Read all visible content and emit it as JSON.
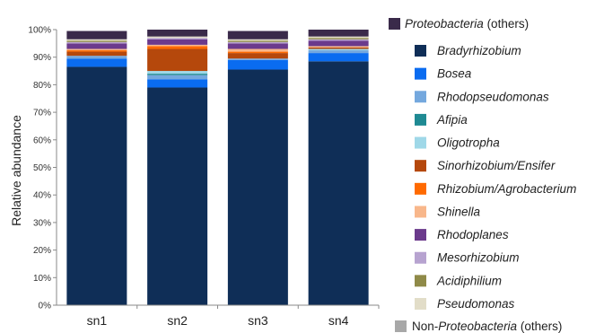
{
  "chart_data": {
    "type": "bar",
    "stacked": true,
    "ylabel": "Relative abundance",
    "ylim": [
      0,
      100
    ],
    "yticks": [
      0,
      10,
      20,
      30,
      40,
      50,
      60,
      70,
      80,
      90,
      100
    ],
    "ytick_suffix": "%",
    "categories": [
      "sn1",
      "sn2",
      "sn3",
      "sn4"
    ],
    "grid": false,
    "legend_position": "right",
    "series": [
      {
        "name": "Bradyrhizobium",
        "color": "#0f2e57",
        "values": [
          86.5,
          79.0,
          85.5,
          88.5
        ]
      },
      {
        "name": "Bosea",
        "color": "#0a6cf0",
        "values": [
          3.0,
          3.0,
          3.5,
          3.0
        ]
      },
      {
        "name": "Rhodopseudomonas",
        "color": "#74a8de",
        "values": [
          1.0,
          1.5,
          0.5,
          1.0
        ]
      },
      {
        "name": "Afipia",
        "color": "#1f8a93",
        "values": [
          0.0,
          0.5,
          0.0,
          0.0
        ]
      },
      {
        "name": "Oligotropha",
        "color": "#9fd8e8",
        "values": [
          0.0,
          1.0,
          0.0,
          0.5
        ]
      },
      {
        "name": "Sinorhizobium/Ensifer",
        "color": "#b5480c",
        "values": [
          1.5,
          8.0,
          2.0,
          0.5
        ]
      },
      {
        "name": "Rhizobium/Agrobacterium",
        "color": "#ff6a00",
        "values": [
          0.5,
          1.0,
          0.5,
          0.0
        ]
      },
      {
        "name": "Shinella",
        "color": "#f8b78b",
        "values": [
          0.5,
          0.5,
          1.0,
          0.5
        ]
      },
      {
        "name": "Rhodoplanes",
        "color": "#6b3a8c",
        "values": [
          2.0,
          2.0,
          2.0,
          2.0
        ]
      },
      {
        "name": "Mesorhizobium",
        "color": "#b7a3d0",
        "values": [
          0.5,
          0.5,
          0.5,
          0.5
        ]
      },
      {
        "name": "Acidiphilium",
        "color": "#8f8a48",
        "values": [
          0.5,
          0.0,
          0.5,
          0.5
        ]
      },
      {
        "name": "Pseudomonas",
        "color": "#e2ddc8",
        "values": [
          0.5,
          0.5,
          0.5,
          0.5
        ]
      },
      {
        "name": "Proteobacteria (others)",
        "color": "#3a2a4a",
        "values": [
          3.0,
          2.5,
          3.0,
          2.5
        ]
      },
      {
        "name": "Non-Proteobacteria (others)",
        "color": "#a8a8a8",
        "values": [
          0.0,
          0.0,
          0.0,
          0.0
        ]
      }
    ],
    "legend": [
      {
        "name": "Proteobacteria (others)",
        "color": "#3a2a4a",
        "italic_part": "Proteobacteria",
        "plain_part": " (others)"
      },
      {
        "name": "Bradyrhizobium",
        "color": "#0f2e57"
      },
      {
        "name": "Bosea",
        "color": "#0a6cf0"
      },
      {
        "name": "Rhodopseudomonas",
        "color": "#74a8de"
      },
      {
        "name": "Afipia",
        "color": "#1f8a93"
      },
      {
        "name": "Oligotropha",
        "color": "#9fd8e8"
      },
      {
        "name": "Sinorhizobium/Ensifer",
        "color": "#b5480c"
      },
      {
        "name": "Rhizobium/Agrobacterium",
        "color": "#ff6a00"
      },
      {
        "name": "Shinella",
        "color": "#f8b78b"
      },
      {
        "name": "Rhodoplanes",
        "color": "#6b3a8c"
      },
      {
        "name": "Mesorhizobium",
        "color": "#b7a3d0"
      },
      {
        "name": "Acidiphilium",
        "color": "#8f8a48"
      },
      {
        "name": "Pseudomonas",
        "color": "#e2ddc8"
      },
      {
        "name": "Non-Proteobacteria (others)",
        "color": "#a8a8a8",
        "prefix": "Non-",
        "italic_part": "Proteobacteria",
        "plain_part": " (others)"
      }
    ]
  }
}
